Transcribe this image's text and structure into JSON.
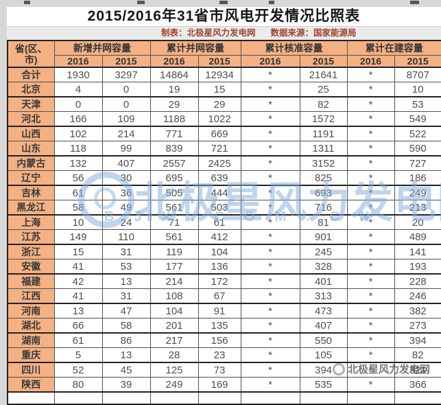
{
  "chart_data": {
    "type": "table",
    "title": "2015/2016年31省市风电开发情况比照表",
    "prepared_by": "制表：北极星风力发电网",
    "data_source": "数据来源：国家能源局",
    "row_header": {
      "line1": "省(区、",
      "line2": "市)"
    },
    "column_groups": [
      "新增并网容量",
      "累计并网容量",
      "累计核准容量",
      "累计在建容量"
    ],
    "years": [
      "2016",
      "2015",
      "2016",
      "2015",
      "2016",
      "2015",
      "2016",
      "2015"
    ],
    "rows": [
      {
        "province": "合计",
        "values": [
          "1930",
          "3297",
          "14864",
          "12934",
          "*",
          "21641",
          "*",
          "8707"
        ]
      },
      {
        "province": "北京",
        "values": [
          "4",
          "0",
          "19",
          "15",
          "*",
          "25",
          "*",
          "10"
        ]
      },
      {
        "province": "天津",
        "values": [
          "0",
          "0",
          "29",
          "29",
          "*",
          "82",
          "*",
          "53"
        ]
      },
      {
        "province": "河北",
        "values": [
          "166",
          "109",
          "1188",
          "1022",
          "*",
          "1572",
          "*",
          "549"
        ]
      },
      {
        "province": "山西",
        "values": [
          "102",
          "214",
          "771",
          "669",
          "*",
          "1191",
          "*",
          "522"
        ]
      },
      {
        "province": "山东",
        "values": [
          "118",
          "99",
          "839",
          "721",
          "*",
          "1311",
          "*",
          "590"
        ]
      },
      {
        "province": "内蒙古",
        "values": [
          "132",
          "407",
          "2557",
          "2425",
          "*",
          "3152",
          "*",
          "727"
        ]
      },
      {
        "province": "辽宁",
        "values": [
          "56",
          "30",
          "695",
          "639",
          "*",
          "825",
          "*",
          "186"
        ]
      },
      {
        "province": "吉林",
        "values": [
          "61",
          "36",
          "505",
          "444",
          "*",
          "693",
          "*",
          "249"
        ]
      },
      {
        "province": "黑龙江",
        "values": [
          "58",
          "49",
          "561",
          "503",
          "*",
          "716",
          "*",
          "213"
        ]
      },
      {
        "province": "上海",
        "values": [
          "10",
          "24",
          "71",
          "61",
          "*",
          "81",
          "*",
          "20"
        ]
      },
      {
        "province": "江苏",
        "values": [
          "149",
          "110",
          "561",
          "412",
          "*",
          "901",
          "*",
          "489"
        ]
      },
      {
        "province": "浙江",
        "values": [
          "15",
          "31",
          "119",
          "104",
          "*",
          "245",
          "*",
          "141"
        ]
      },
      {
        "province": "安徽",
        "values": [
          "41",
          "53",
          "177",
          "136",
          "*",
          "328",
          "*",
          "193"
        ]
      },
      {
        "province": "福建",
        "values": [
          "42",
          "13",
          "214",
          "172",
          "*",
          "401",
          "*",
          "228"
        ]
      },
      {
        "province": "江西",
        "values": [
          "41",
          "31",
          "108",
          "67",
          "*",
          "313",
          "*",
          "246"
        ]
      },
      {
        "province": "河南",
        "values": [
          "13",
          "47",
          "104",
          "91",
          "*",
          "473",
          "*",
          "382"
        ]
      },
      {
        "province": "湖北",
        "values": [
          "66",
          "58",
          "201",
          "135",
          "*",
          "407",
          "*",
          "273"
        ]
      },
      {
        "province": "湖南",
        "values": [
          "61",
          "86",
          "217",
          "156",
          "*",
          "550",
          "*",
          "394"
        ]
      },
      {
        "province": "重庆",
        "values": [
          "5",
          "13",
          "28",
          "23",
          "*",
          "105",
          "*",
          "82"
        ]
      },
      {
        "province": "四川",
        "values": [
          "52",
          "45",
          "125",
          "73",
          "*",
          "394",
          "*",
          "321"
        ]
      },
      {
        "province": "陕西",
        "values": [
          "80",
          "39",
          "249",
          "169",
          "*",
          "535",
          "*",
          "366"
        ]
      }
    ]
  },
  "watermark": {
    "big_text": "北极星风力发电网",
    "url_letters": "BJX.COM.CN",
    "footer_text": "北极星风力发电网"
  },
  "colors": {
    "header_bg": "#F4B183",
    "credits_text": "#A04330",
    "watermark_blue": "#80ACDA",
    "grid_line": "#4F4F4F"
  }
}
